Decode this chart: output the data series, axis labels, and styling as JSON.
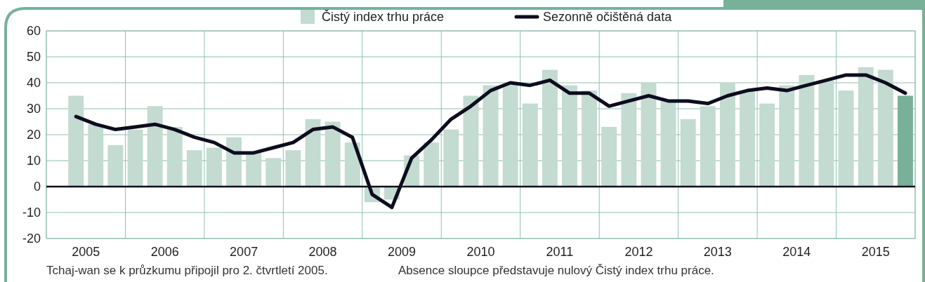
{
  "chart_data": {
    "type": "bar",
    "x": [
      2005.375,
      2005.625,
      2005.875,
      2006.125,
      2006.375,
      2006.625,
      2006.875,
      2007.125,
      2007.375,
      2007.625,
      2007.875,
      2008.125,
      2008.375,
      2008.625,
      2008.875,
      2009.125,
      2009.375,
      2009.625,
      2009.875,
      2010.125,
      2010.375,
      2010.625,
      2010.875,
      2011.125,
      2011.375,
      2011.625,
      2011.875,
      2012.125,
      2012.375,
      2012.625,
      2012.875,
      2013.125,
      2013.375,
      2013.625,
      2013.875,
      2014.125,
      2014.375,
      2014.625,
      2014.875,
      2015.125,
      2015.375,
      2015.625,
      2015.875
    ],
    "series": [
      {
        "name": "Čistý index trhu práce",
        "color": "#c3dbd1",
        "colors": [
          "#c3dbd1",
          "#c3dbd1",
          "#c3dbd1",
          "#c3dbd1",
          "#c3dbd1",
          "#c3dbd1",
          "#c3dbd1",
          "#c3dbd1",
          "#c3dbd1",
          "#c3dbd1",
          "#c3dbd1",
          "#c3dbd1",
          "#c3dbd1",
          "#c3dbd1",
          "#c3dbd1",
          "#c3dbd1",
          "#c3dbd1",
          "#c3dbd1",
          "#c3dbd1",
          "#c3dbd1",
          "#c3dbd1",
          "#c3dbd1",
          "#c3dbd1",
          "#c3dbd1",
          "#c3dbd1",
          "#c3dbd1",
          "#c3dbd1",
          "#c3dbd1",
          "#c3dbd1",
          "#c3dbd1",
          "#c3dbd1",
          "#c3dbd1",
          "#c3dbd1",
          "#c3dbd1",
          "#c3dbd1",
          "#c3dbd1",
          "#c3dbd1",
          "#c3dbd1",
          "#c3dbd1",
          "#c3dbd1",
          "#c3dbd1",
          "#c3dbd1",
          "#78b09a"
        ],
        "values": [
          35,
          24,
          16,
          22,
          31,
          23,
          14,
          15,
          19,
          13,
          11,
          14,
          26,
          25,
          17,
          -6,
          -5,
          12,
          17,
          22,
          35,
          39,
          40,
          32,
          45,
          39,
          37,
          23,
          36,
          40,
          33,
          26,
          31,
          40,
          37,
          32,
          39,
          43,
          41,
          37,
          46,
          45,
          35
        ]
      },
      {
        "name": "Sezonně očištěná data",
        "type": "line",
        "color": "#0d0d1f",
        "values": [
          27,
          24,
          22,
          23,
          24,
          22,
          19,
          17,
          13,
          13,
          15,
          17,
          22,
          23,
          19,
          -3,
          -8,
          11,
          18,
          26,
          31,
          37,
          40,
          39,
          41,
          36,
          36,
          31,
          33,
          35,
          33,
          33,
          32,
          35,
          37,
          38,
          37,
          39,
          41,
          43,
          43,
          40,
          36
        ]
      }
    ],
    "xlim": [
      2005,
      2016
    ],
    "xticks": [
      {
        "value": 2005,
        "label": null
      },
      {
        "value": 2005.5,
        "label": "2005"
      },
      {
        "value": 2006,
        "label": null
      },
      {
        "value": 2006.5,
        "label": "2006"
      },
      {
        "value": 2007,
        "label": null
      },
      {
        "value": 2007.5,
        "label": "2007"
      },
      {
        "value": 2008,
        "label": null
      },
      {
        "value": 2008.5,
        "label": "2008"
      },
      {
        "value": 2009,
        "label": null
      },
      {
        "value": 2009.5,
        "label": "2009"
      },
      {
        "value": 2010,
        "label": null
      },
      {
        "value": 2010.5,
        "label": "2010"
      },
      {
        "value": 2011,
        "label": null
      },
      {
        "value": 2011.5,
        "label": "2011"
      },
      {
        "value": 2012,
        "label": null
      },
      {
        "value": 2012.5,
        "label": "2012"
      },
      {
        "value": 2013,
        "label": null
      },
      {
        "value": 2013.5,
        "label": "2013"
      },
      {
        "value": 2014,
        "label": null
      },
      {
        "value": 2014.5,
        "label": "2014"
      },
      {
        "value": 2015,
        "label": null
      },
      {
        "value": 2015.5,
        "label": "2015"
      },
      {
        "value": 2016,
        "label": null
      }
    ],
    "ylim": [
      -20,
      60
    ],
    "yticks": [
      -20,
      -10,
      0,
      10,
      20,
      30,
      40,
      50,
      60
    ],
    "grid": true,
    "legend": "top",
    "marker": "none",
    "annotations": [
      "Tchaj-wan se k průzkumu připojil pro 2. čtvrtletí 2005.",
      "Absence sloupce představuje nulový Čistý index trhu práce."
    ]
  }
}
